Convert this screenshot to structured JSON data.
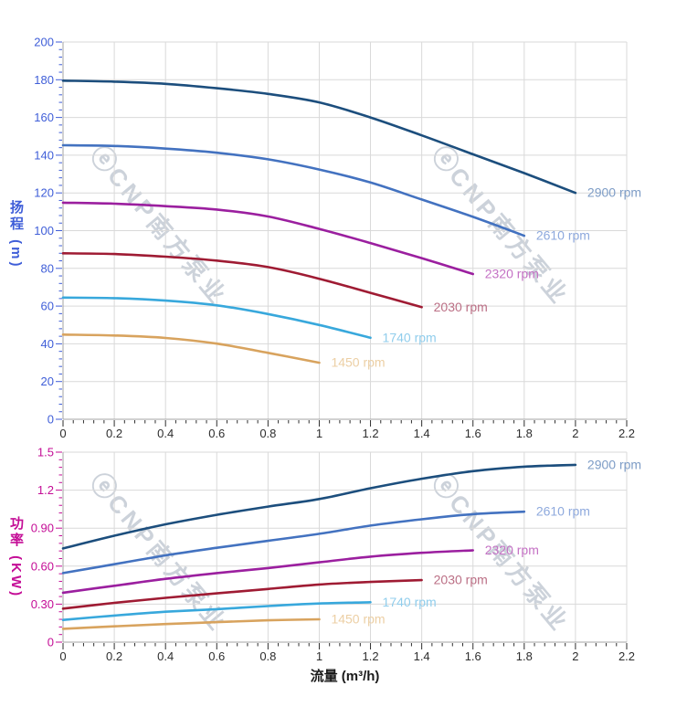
{
  "watermark": {
    "logo_icon": "cnp-logo",
    "text": "CNP南方泵业"
  },
  "style": {
    "grid_color": "#d9d9d9",
    "axis_line_color": "#a3a3a3",
    "x_tick_color": "#2e2e2e",
    "head_axis_color": "#3f5ed8",
    "power_axis_color": "#c40d96"
  },
  "chart_data": [
    {
      "id": "head",
      "type": "line",
      "title": "",
      "xlabel": "流量 (m³/h)",
      "ylabel": "扬程 (m)",
      "xlim": [
        0,
        2.2
      ],
      "ylim": [
        0,
        200
      ],
      "x_major_step": 0.2,
      "x_minor_step": 0.04,
      "y_major_step": 20,
      "y_minor_step": 4,
      "grid": true,
      "legend_position": "end-of-line",
      "axis_color": "#3f5ed8",
      "x_tick_labels": [
        "0",
        "0.2",
        "0.4",
        "0.6",
        "0.8",
        "1",
        "1.2",
        "1.4",
        "1.6",
        "1.8",
        "2",
        "2.2"
      ],
      "y_tick_labels": [
        "0",
        "20",
        "40",
        "60",
        "80",
        "100",
        "120",
        "140",
        "160",
        "180",
        "200"
      ],
      "series": [
        {
          "name": "2900 rpm",
          "color": "#1c4e7d",
          "label_color": "#7d9cc6",
          "x": [
            0,
            0.2,
            0.4,
            0.6,
            0.8,
            1.0,
            1.2,
            1.4,
            1.6,
            1.8,
            2.0
          ],
          "y": [
            179.5,
            179.0,
            177.8,
            175.5,
            172.5,
            168.0,
            160.0,
            150.5,
            140.5,
            130.5,
            120.0
          ]
        },
        {
          "name": "2610 rpm",
          "color": "#4372c0",
          "label_color": "#8ea9dd",
          "x": [
            0,
            0.2,
            0.4,
            0.6,
            0.8,
            1.0,
            1.2,
            1.4,
            1.6,
            1.8
          ],
          "y": [
            145.3,
            144.9,
            143.5,
            141.3,
            137.8,
            132.4,
            125.5,
            116.5,
            107.3,
            97.3
          ]
        },
        {
          "name": "2320 rpm",
          "color": "#9b1f9f",
          "label_color": "#c471c4",
          "x": [
            0,
            0.2,
            0.4,
            0.6,
            0.8,
            1.0,
            1.2,
            1.4,
            1.6
          ],
          "y": [
            114.8,
            114.3,
            113.0,
            111.2,
            107.5,
            100.9,
            93.4,
            85.4,
            77.0
          ]
        },
        {
          "name": "2030 rpm",
          "color": "#9f1b33",
          "label_color": "#bb6f85",
          "x": [
            0,
            0.2,
            0.4,
            0.6,
            0.8,
            1.0,
            1.2,
            1.4
          ],
          "y": [
            88.0,
            87.6,
            86.2,
            84.1,
            80.7,
            74.5,
            67.0,
            59.4
          ]
        },
        {
          "name": "1740 rpm",
          "color": "#38a8dc",
          "label_color": "#90cdec",
          "x": [
            0,
            0.2,
            0.4,
            0.6,
            0.8,
            1.0,
            1.2
          ],
          "y": [
            64.5,
            64.2,
            62.9,
            60.4,
            55.8,
            50.0,
            43.2
          ]
        },
        {
          "name": "1450 rpm",
          "color": "#d8a35e",
          "label_color": "#eccfa4",
          "x": [
            0,
            0.2,
            0.4,
            0.6,
            0.8,
            1.0
          ],
          "y": [
            44.9,
            44.4,
            43.1,
            40.1,
            35.2,
            30.0
          ]
        }
      ]
    },
    {
      "id": "power",
      "type": "line",
      "title": "",
      "xlabel": "流量 (m³/h)",
      "ylabel": "功率 (KW)",
      "xlim": [
        0,
        2.2
      ],
      "ylim": [
        0,
        1.5
      ],
      "x_major_step": 0.2,
      "x_minor_step": 0.04,
      "y_major_step": 0.3,
      "y_minor_step": 0.06,
      "grid": true,
      "legend_position": "end-of-line",
      "axis_color": "#c40d96",
      "x_tick_labels": [
        "0",
        "0.2",
        "0.4",
        "0.6",
        "0.8",
        "1",
        "1.2",
        "1.4",
        "1.6",
        "1.8",
        "2",
        "2.2"
      ],
      "y_tick_labels": [
        "0",
        "0.30",
        "0.60",
        "0.90",
        "1.2",
        "1.5"
      ],
      "series": [
        {
          "name": "2900 rpm",
          "color": "#1c4e7d",
          "label_color": "#7d9cc6",
          "x": [
            0,
            0.2,
            0.4,
            0.6,
            0.8,
            1.0,
            1.2,
            1.4,
            1.6,
            1.8,
            2.0
          ],
          "y": [
            0.74,
            0.84,
            0.93,
            1.005,
            1.07,
            1.13,
            1.215,
            1.29,
            1.35,
            1.385,
            1.4
          ]
        },
        {
          "name": "2610 rpm",
          "color": "#4372c0",
          "label_color": "#8ea9dd",
          "x": [
            0,
            0.2,
            0.4,
            0.6,
            0.8,
            1.0,
            1.2,
            1.4,
            1.6,
            1.8
          ],
          "y": [
            0.545,
            0.615,
            0.685,
            0.745,
            0.8,
            0.855,
            0.92,
            0.97,
            1.01,
            1.03
          ]
        },
        {
          "name": "2320 rpm",
          "color": "#9b1f9f",
          "label_color": "#c471c4",
          "x": [
            0,
            0.2,
            0.4,
            0.6,
            0.8,
            1.0,
            1.2,
            1.4,
            1.6
          ],
          "y": [
            0.39,
            0.445,
            0.5,
            0.545,
            0.585,
            0.63,
            0.675,
            0.705,
            0.725
          ]
        },
        {
          "name": "2030 rpm",
          "color": "#9f1b33",
          "label_color": "#bb6f85",
          "x": [
            0,
            0.2,
            0.4,
            0.6,
            0.8,
            1.0,
            1.2,
            1.4
          ],
          "y": [
            0.265,
            0.31,
            0.35,
            0.385,
            0.42,
            0.455,
            0.475,
            0.49
          ]
        },
        {
          "name": "1740 rpm",
          "color": "#38a8dc",
          "label_color": "#90cdec",
          "x": [
            0,
            0.2,
            0.4,
            0.6,
            0.8,
            1.0,
            1.2
          ],
          "y": [
            0.175,
            0.21,
            0.24,
            0.26,
            0.285,
            0.305,
            0.315
          ]
        },
        {
          "name": "1450 rpm",
          "color": "#d8a35e",
          "label_color": "#eccfa4",
          "x": [
            0,
            0.2,
            0.4,
            0.6,
            0.8,
            1.0
          ],
          "y": [
            0.105,
            0.125,
            0.143,
            0.158,
            0.172,
            0.18
          ]
        }
      ]
    }
  ]
}
